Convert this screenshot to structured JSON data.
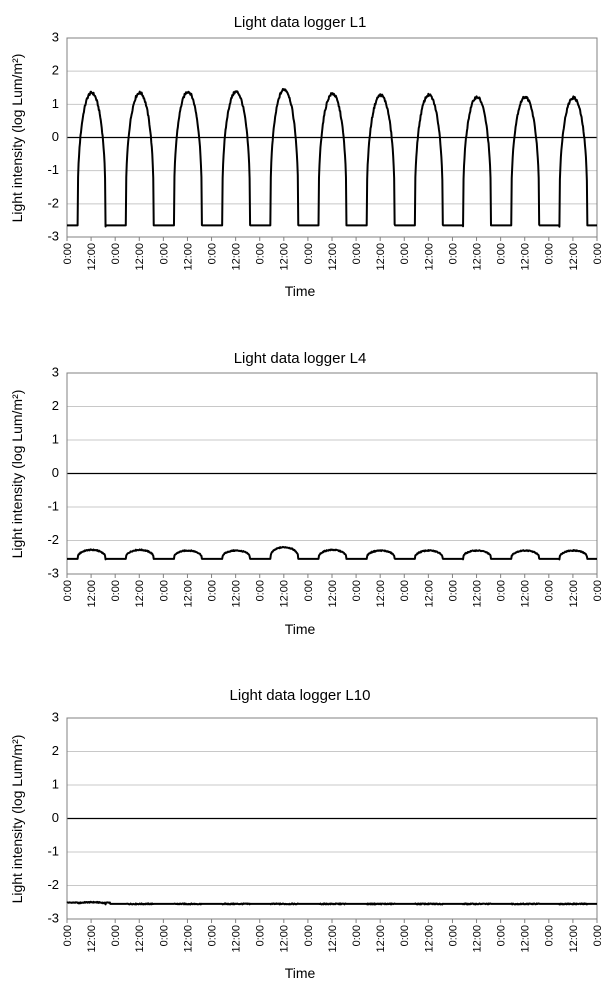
{
  "chart_data": [
    {
      "type": "line",
      "title": "Light data logger  L1",
      "xlabel": "Time",
      "ylabel": "Light intensity (log Lum/m²)",
      "ylim": [
        -3,
        3
      ],
      "yticks": [
        "3",
        "2",
        "1",
        "0",
        "-1",
        "-2",
        "-3"
      ],
      "xticks": [
        "0:00",
        "12:00",
        "0:00",
        "12:00",
        "0:00",
        "12:00",
        "0:00",
        "12:00",
        "0:00",
        "12:00",
        "0:00",
        "12:00",
        "0:00",
        "12:00",
        "0:00",
        "12:00",
        "0:00",
        "12:00",
        "0:00",
        "12:00",
        "0:00",
        "12:00",
        "0:00"
      ],
      "grid": true,
      "series": [
        {
          "baseline": -2.65,
          "daily_peaks": [
            1.35,
            1.35,
            1.38,
            1.38,
            1.45,
            1.32,
            1.28,
            1.28,
            1.22,
            1.22,
            1.2
          ],
          "x_unit": "days",
          "days": 11
        }
      ]
    },
    {
      "type": "line",
      "title": "Light data logger  L4",
      "xlabel": "Time",
      "ylabel": "Light intensity (log Lum/m²)",
      "ylim": [
        -3,
        3
      ],
      "yticks": [
        "3",
        "2",
        "1",
        "0",
        "-1",
        "-2",
        "-3"
      ],
      "xticks": [
        "0:00",
        "12:00",
        "0:00",
        "12:00",
        "0:00",
        "12:00",
        "0:00",
        "12:00",
        "0:00",
        "12:00",
        "0:00",
        "12:00",
        "0:00",
        "12:00",
        "0:00",
        "12:00",
        "0:00",
        "12:00",
        "0:00",
        "12:00",
        "0:00",
        "12:00",
        "0:00"
      ],
      "grid": true,
      "series": [
        {
          "baseline": -2.55,
          "daily_peaks": [
            -2.28,
            -2.28,
            -2.3,
            -2.3,
            -2.2,
            -2.28,
            -2.3,
            -2.3,
            -2.3,
            -2.3,
            -2.3
          ],
          "x_unit": "days",
          "days": 11
        }
      ]
    },
    {
      "type": "line",
      "title": "Light data logger  L10",
      "xlabel": "Time",
      "ylabel": "Light intensity (log Lum/m²)",
      "ylim": [
        -3,
        3
      ],
      "yticks": [
        "3",
        "2",
        "1",
        "0",
        "-1",
        "-2",
        "-3"
      ],
      "xticks": [
        "0:00",
        "12:00",
        "0:00",
        "12:00",
        "0:00",
        "12:00",
        "0:00",
        "12:00",
        "0:00",
        "12:00",
        "0:00",
        "12:00",
        "0:00",
        "12:00",
        "0:00",
        "12:00",
        "0:00",
        "12:00",
        "0:00",
        "12:00",
        "0:00",
        "12:00",
        "0:00"
      ],
      "grid": true,
      "series": [
        {
          "baseline": -2.55,
          "daily_peaks": [
            -2.5,
            -2.55,
            -2.55,
            -2.55,
            -2.55,
            -2.55,
            -2.55,
            -2.55,
            -2.55,
            -2.55,
            -2.55
          ],
          "x_unit": "days",
          "days": 11
        }
      ]
    }
  ]
}
